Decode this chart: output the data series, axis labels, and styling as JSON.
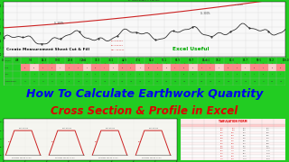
{
  "bg_color": "#ffffff",
  "border_color": "#22cc22",
  "title_line1": "How To Calculate Earthwork Quantity",
  "title_line2": "Cross Section & Profile in Excel",
  "title_color1": "#0000ee",
  "title_color2": "#dd0000",
  "chart_title": "L Section Profile",
  "measurement_text": "Create Measurement Sheet Cut & Fill",
  "excel_useful_text": "Excel Useful",
  "excel_useful_color": "#00aa00",
  "chart_line_red_color": "#cc2222",
  "chart_line_black_color": "#222222",
  "grid_color": "#cccccc",
  "spreadsheet_bg": "#ffffff",
  "cell_red": "#ff8888",
  "cell_pink": "#ffcccc",
  "bottom_bg": "#f5f5f0",
  "cross_line_color": "#cc2222",
  "cross_base_color": "#555555",
  "table_header_red": "#dd0000",
  "table_header_bg": "#ffeeee"
}
